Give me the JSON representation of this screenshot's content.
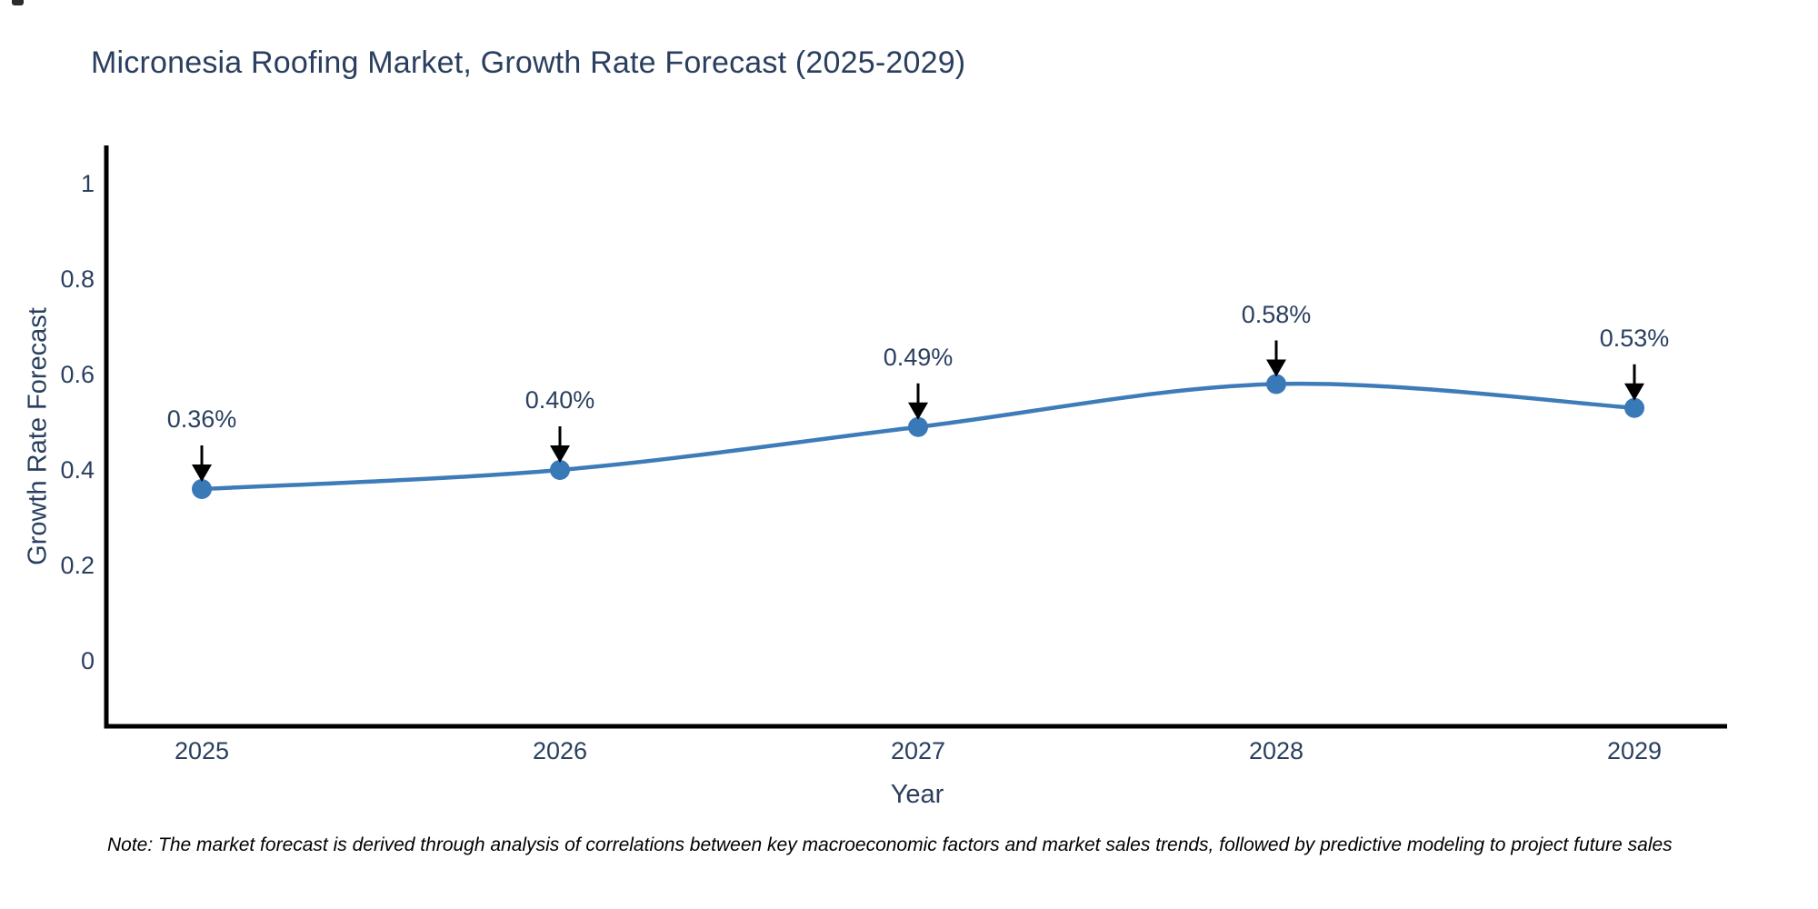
{
  "title": "Micronesia Roofing Market, Growth Rate Forecast (2025-2029)",
  "chart_data": {
    "type": "line",
    "curve": "spline",
    "categories": [
      "2025",
      "2026",
      "2027",
      "2028",
      "2029"
    ],
    "x": [
      2025,
      2026,
      2027,
      2028,
      2029
    ],
    "values": [
      0.36,
      0.4,
      0.49,
      0.58,
      0.53
    ],
    "point_labels": [
      "0.36%",
      "0.40%",
      "0.49%",
      "0.58%",
      "0.53%"
    ],
    "title": "Micronesia Roofing Market, Growth Rate Forecast (2025-2029)",
    "xlabel": "Year",
    "ylabel": "Growth Rate Forecast",
    "y_ticks": [
      "0",
      "0.2",
      "0.4",
      "0.6",
      "0.8",
      "1"
    ],
    "y_tick_values": [
      0,
      0.2,
      0.4,
      0.6,
      0.8,
      1
    ],
    "ylim": [
      -0.14,
      1.09
    ],
    "xlim": [
      2024.74,
      2029.27
    ],
    "grid": false,
    "legend": "none",
    "annotations_have_arrows": true
  },
  "note": "Note: The market forecast is derived through analysis of correlations between key macroeconomic factors and market sales trends, followed by predictive modeling to project future sales",
  "colors": {
    "title_text": "#2a3f5f",
    "tick_text": "#2a3f5f",
    "axis_line": "#000000",
    "series_line": "#3d7cb8",
    "marker_fill": "#3a79b8",
    "arrow": "#000000",
    "note_text": "#000000",
    "background": "#ffffff"
  }
}
